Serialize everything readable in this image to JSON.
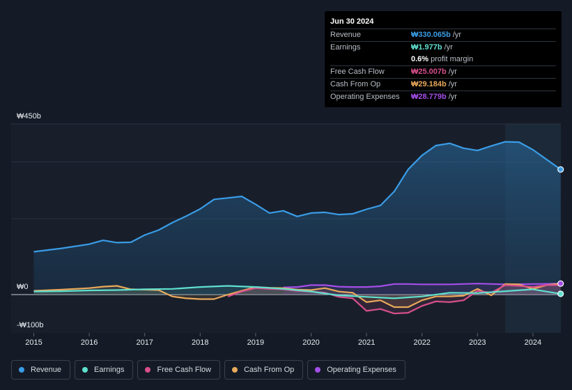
{
  "chart_data": {
    "type": "area",
    "title": "",
    "xlabel": "",
    "ylabel": "",
    "ylim": [
      -100,
      450
    ],
    "y_axis_labels": [
      "₩450b",
      "₩0",
      "-₩100b"
    ],
    "y_axis_values": [
      450,
      0,
      -100
    ],
    "x_tick_labels": [
      "2015",
      "2016",
      "2017",
      "2018",
      "2019",
      "2020",
      "2021",
      "2022",
      "2023",
      "2024"
    ],
    "x_tick_values": [
      2015,
      2016,
      2017,
      2018,
      2019,
      2020,
      2021,
      2022,
      2023,
      2024
    ],
    "xlim": [
      2014.6,
      2024.5
    ],
    "forecast_start": 2023.5,
    "series": [
      {
        "name": "Revenue",
        "color": "#3a9ce6",
        "filled": true,
        "points": [
          [
            2015.0,
            113
          ],
          [
            2015.5,
            122
          ],
          [
            2016.0,
            133
          ],
          [
            2016.25,
            143
          ],
          [
            2016.5,
            137
          ],
          [
            2016.75,
            138
          ],
          [
            2017.0,
            157
          ],
          [
            2017.25,
            170
          ],
          [
            2017.5,
            190
          ],
          [
            2017.75,
            207
          ],
          [
            2018.0,
            226
          ],
          [
            2018.25,
            251
          ],
          [
            2018.5,
            255
          ],
          [
            2018.75,
            259
          ],
          [
            2019.0,
            238
          ],
          [
            2019.25,
            215
          ],
          [
            2019.5,
            221
          ],
          [
            2019.75,
            206
          ],
          [
            2020.0,
            215
          ],
          [
            2020.25,
            217
          ],
          [
            2020.5,
            211
          ],
          [
            2020.75,
            213
          ],
          [
            2021.0,
            225
          ],
          [
            2021.25,
            235
          ],
          [
            2021.5,
            272
          ],
          [
            2021.75,
            330
          ],
          [
            2022.0,
            367
          ],
          [
            2022.25,
            393
          ],
          [
            2022.5,
            399
          ],
          [
            2022.75,
            386
          ],
          [
            2023.0,
            380
          ],
          [
            2023.25,
            392
          ],
          [
            2023.5,
            403
          ],
          [
            2023.75,
            402
          ],
          [
            2024.0,
            382
          ],
          [
            2024.25,
            356
          ],
          [
            2024.5,
            330
          ]
        ]
      },
      {
        "name": "Earnings",
        "color": "#5fe0cf",
        "filled": false,
        "points": [
          [
            2015.0,
            8
          ],
          [
            2015.5,
            9
          ],
          [
            2016.0,
            11
          ],
          [
            2016.5,
            12
          ],
          [
            2017.0,
            14
          ],
          [
            2017.5,
            15
          ],
          [
            2018.0,
            20
          ],
          [
            2018.5,
            23
          ],
          [
            2019.0,
            20
          ],
          [
            2019.5,
            15
          ],
          [
            2020.0,
            8
          ],
          [
            2020.5,
            -2
          ],
          [
            2021.0,
            -6
          ],
          [
            2021.5,
            -10
          ],
          [
            2022.0,
            -5
          ],
          [
            2022.5,
            5
          ],
          [
            2023.0,
            4
          ],
          [
            2023.5,
            9
          ],
          [
            2024.0,
            14
          ],
          [
            2024.5,
            2
          ]
        ]
      },
      {
        "name": "Free Cash Flow",
        "color": "#d84f8c",
        "filled": false,
        "points": [
          [
            2018.5,
            -5
          ],
          [
            2018.75,
            8
          ],
          [
            2019.0,
            17
          ],
          [
            2019.25,
            15
          ],
          [
            2019.5,
            14
          ],
          [
            2019.75,
            10
          ],
          [
            2020.0,
            8
          ],
          [
            2020.25,
            5
          ],
          [
            2020.5,
            -6
          ],
          [
            2020.75,
            -10
          ],
          [
            2021.0,
            -43
          ],
          [
            2021.25,
            -38
          ],
          [
            2021.5,
            -50
          ],
          [
            2021.75,
            -48
          ],
          [
            2022.0,
            -30
          ],
          [
            2022.25,
            -18
          ],
          [
            2022.5,
            -20
          ],
          [
            2022.75,
            -15
          ],
          [
            2023.0,
            10
          ],
          [
            2023.25,
            5
          ],
          [
            2023.5,
            25
          ],
          [
            2023.75,
            23
          ],
          [
            2024.0,
            20
          ],
          [
            2024.25,
            25
          ],
          [
            2024.5,
            25
          ]
        ]
      },
      {
        "name": "Cash From Op",
        "color": "#e9a95b",
        "filled": false,
        "points": [
          [
            2015.0,
            10
          ],
          [
            2015.5,
            13
          ],
          [
            2016.0,
            17
          ],
          [
            2016.25,
            21
          ],
          [
            2016.5,
            23
          ],
          [
            2016.75,
            14
          ],
          [
            2017.0,
            13
          ],
          [
            2017.25,
            12
          ],
          [
            2017.5,
            -5
          ],
          [
            2017.75,
            -10
          ],
          [
            2018.0,
            -12
          ],
          [
            2018.25,
            -12
          ],
          [
            2018.5,
            0
          ],
          [
            2018.75,
            10
          ],
          [
            2019.0,
            20
          ],
          [
            2019.25,
            18
          ],
          [
            2019.5,
            17
          ],
          [
            2019.75,
            13
          ],
          [
            2020.0,
            12
          ],
          [
            2020.25,
            17
          ],
          [
            2020.5,
            8
          ],
          [
            2020.75,
            5
          ],
          [
            2021.0,
            -20
          ],
          [
            2021.25,
            -15
          ],
          [
            2021.5,
            -33
          ],
          [
            2021.75,
            -33
          ],
          [
            2022.0,
            -15
          ],
          [
            2022.25,
            -5
          ],
          [
            2022.5,
            -5
          ],
          [
            2022.75,
            -3
          ],
          [
            2023.0,
            15
          ],
          [
            2023.25,
            -2
          ],
          [
            2023.5,
            28
          ],
          [
            2023.75,
            27
          ],
          [
            2024.0,
            15
          ],
          [
            2024.25,
            25
          ],
          [
            2024.5,
            29
          ]
        ]
      },
      {
        "name": "Operating Expenses",
        "color": "#a44ee8",
        "filled": false,
        "points": [
          [
            2019.5,
            19
          ],
          [
            2019.75,
            20
          ],
          [
            2020.0,
            25
          ],
          [
            2020.25,
            25
          ],
          [
            2020.5,
            21
          ],
          [
            2020.75,
            20
          ],
          [
            2021.0,
            20
          ],
          [
            2021.25,
            22
          ],
          [
            2021.5,
            28
          ],
          [
            2021.75,
            28
          ],
          [
            2022.0,
            27
          ],
          [
            2022.5,
            27
          ],
          [
            2023.0,
            29
          ],
          [
            2023.5,
            27
          ],
          [
            2024.0,
            28
          ],
          [
            2024.5,
            29
          ]
        ]
      }
    ]
  },
  "tooltip": {
    "date": "Jun 30 2024",
    "rows": [
      {
        "label": "Revenue",
        "value": "₩330.065b",
        "unit": "/yr",
        "color": "#3a9ce6"
      },
      {
        "label": "Earnings",
        "value": "₩1.977b",
        "unit": "/yr",
        "color": "#5fe0cf"
      },
      {
        "label": "",
        "value": "0.6%",
        "unit": "profit margin",
        "color": "#ffffff"
      },
      {
        "label": "Free Cash Flow",
        "value": "₩25.007b",
        "unit": "/yr",
        "color": "#d84f8c"
      },
      {
        "label": "Cash From Op",
        "value": "₩29.184b",
        "unit": "/yr",
        "color": "#e9a95b"
      },
      {
        "label": "Operating Expenses",
        "value": "₩28.779b",
        "unit": "/yr",
        "color": "#a44ee8"
      }
    ]
  },
  "legend": [
    {
      "label": "Revenue",
      "color": "#3a9ce6"
    },
    {
      "label": "Earnings",
      "color": "#5fe0cf"
    },
    {
      "label": "Free Cash Flow",
      "color": "#d84f8c"
    },
    {
      "label": "Cash From Op",
      "color": "#e9a95b"
    },
    {
      "label": "Operating Expenses",
      "color": "#a44ee8"
    }
  ]
}
